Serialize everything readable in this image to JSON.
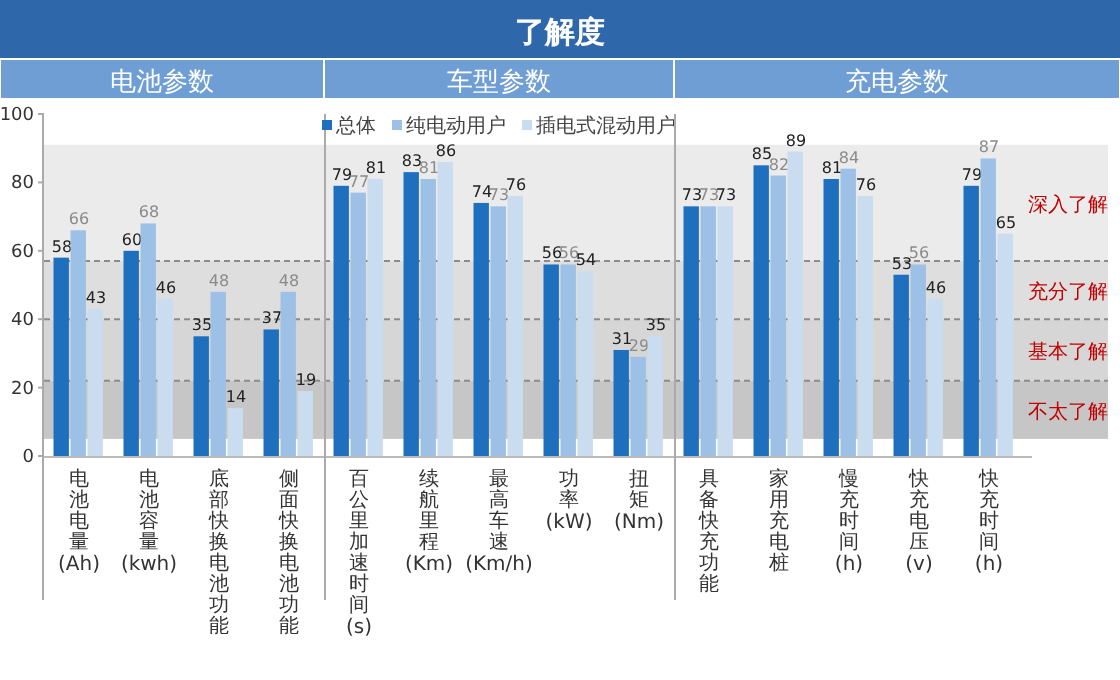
{
  "chart_data": [
    {
      "type": "bar",
      "title": "电池参数",
      "categories": [
        "电池电量(Ah)",
        "电池容量(kwh)",
        "底部快换电池功能",
        "侧面快换电池功能"
      ],
      "series": [
        {
          "color": "#1f6fbf",
          "values": [
            58,
            60,
            35,
            37
          ]
        },
        {
          "color": "#9dc0e6",
          "values": [
            66,
            68,
            48,
            48
          ]
        },
        {
          "color": "#c9dcf0",
          "values": [
            43,
            46,
            14,
            19
          ]
        }
      ],
      "ylim": [
        0,
        100
      ],
      "yticks": [
        0,
        20,
        40,
        60,
        80,
        100
      ],
      "data_labels": true,
      "bands": [
        {
          "axis": "y",
          "from": 57,
          "to": 91,
          "color": "#ebebeb"
        },
        {
          "axis": "y",
          "from": 40,
          "to": 57,
          "color": "#dedede"
        },
        {
          "axis": "y",
          "from": 22,
          "to": 40,
          "color": "#d6d6d6"
        },
        {
          "axis": "y",
          "from": 5,
          "to": 22,
          "color": "#c6c6c6"
        }
      ],
      "ref_lines": [
        {
          "axis": "y",
          "value": 57,
          "color": "#8c8c8c",
          "line_style": "dashed"
        },
        {
          "axis": "y",
          "value": 40,
          "color": "#8c8c8c",
          "line_style": "dashed"
        },
        {
          "axis": "y",
          "value": 22,
          "color": "#8c8c8c",
          "line_style": "dashed"
        }
      ]
    },
    {
      "type": "bar",
      "title": "了解度",
      "subtitle": "车型参数",
      "categories": [
        "百公里加速时间(s)",
        "续航里程(Km)",
        "最高车速(Km/h)",
        "功率(kW)",
        "扭矩(Nm)"
      ],
      "series": [
        {
          "name": "总体",
          "color": "#1f6fbf",
          "values": [
            79,
            83,
            74,
            56,
            31
          ]
        },
        {
          "name": "纯电动用户",
          "color": "#9dc0e6",
          "values": [
            77,
            81,
            73,
            56,
            29
          ]
        },
        {
          "name": "插电式混动用户",
          "color": "#c9dcf0",
          "values": [
            81,
            86,
            76,
            54,
            35
          ]
        }
      ],
      "ylim": [
        0,
        100
      ],
      "tick_labels": "x",
      "data_labels": true,
      "legend": "top",
      "bands": [
        {
          "axis": "y",
          "from": 57,
          "to": 91,
          "color": "#ebebeb"
        },
        {
          "axis": "y",
          "from": 40,
          "to": 57,
          "color": "#dedede"
        },
        {
          "axis": "y",
          "from": 22,
          "to": 40,
          "color": "#d6d6d6"
        },
        {
          "axis": "y",
          "from": 5,
          "to": 22,
          "color": "#c6c6c6"
        }
      ],
      "ref_lines": [
        {
          "axis": "y",
          "value": 57,
          "color": "#8c8c8c",
          "line_style": "dashed"
        },
        {
          "axis": "y",
          "value": 40,
          "color": "#8c8c8c",
          "line_style": "dashed"
        },
        {
          "axis": "y",
          "value": 22,
          "color": "#8c8c8c",
          "line_style": "dashed"
        }
      ]
    },
    {
      "type": "bar",
      "title": "充电参数",
      "categories": [
        "具备快充功能",
        "家用充电桩",
        "慢充时间(h)",
        "快充电压(v)",
        "快充时间(h)"
      ],
      "series": [
        {
          "color": "#1f6fbf",
          "values": [
            73,
            85,
            81,
            53,
            79
          ]
        },
        {
          "color": "#9dc0e6",
          "values": [
            73,
            82,
            84,
            56,
            87
          ]
        },
        {
          "color": "#c9dcf0",
          "values": [
            73,
            89,
            76,
            46,
            65
          ]
        }
      ],
      "ylim": [
        0,
        100
      ],
      "tick_labels": "x",
      "data_labels": true,
      "bands": [
        {
          "axis": "y",
          "from": 57,
          "to": 91,
          "label": "深入了解",
          "color": "#ebebeb"
        },
        {
          "axis": "y",
          "from": 40,
          "to": 57,
          "label": "充分了解",
          "color": "#dedede"
        },
        {
          "axis": "y",
          "from": 22,
          "to": 40,
          "label": "基本了解",
          "color": "#d6d6d6"
        },
        {
          "axis": "y",
          "from": 5,
          "to": 22,
          "label": "不太了解",
          "color": "#c6c6c6"
        }
      ],
      "ref_lines": [
        {
          "axis": "y",
          "value": 57,
          "color": "#8c8c8c",
          "line_style": "dashed"
        },
        {
          "axis": "y",
          "value": 40,
          "color": "#8c8c8c",
          "line_style": "dashed"
        },
        {
          "axis": "y",
          "value": 22,
          "color": "#8c8c8c",
          "line_style": "dashed"
        }
      ]
    }
  ]
}
